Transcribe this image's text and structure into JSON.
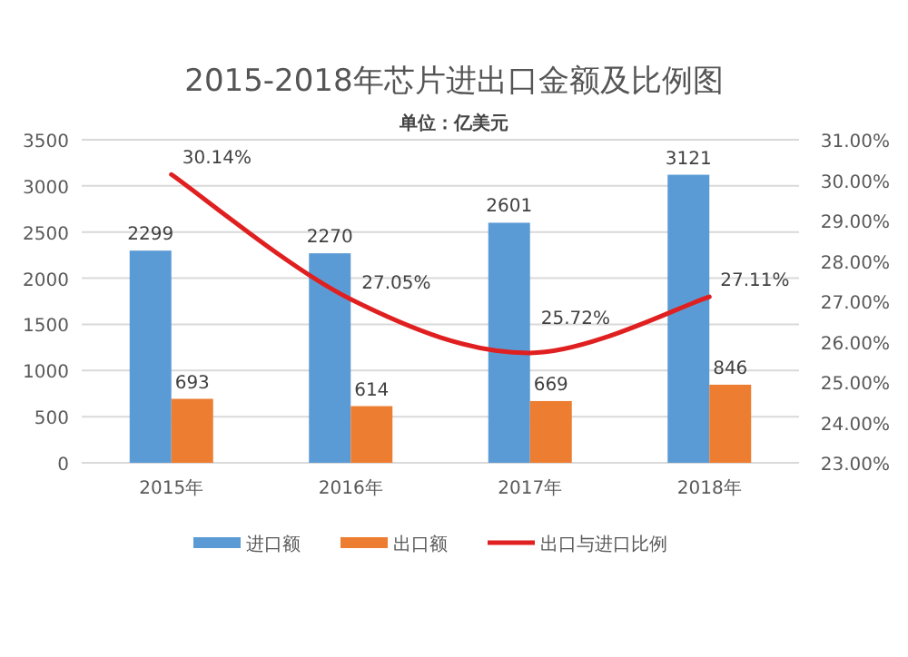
{
  "chart_data": {
    "type": "bar",
    "title": "2015-2018年芯片进出口金额及比例图",
    "subtitle": "单位：亿美元",
    "categories": [
      "2015年",
      "2016年",
      "2017年",
      "2018年"
    ],
    "series": [
      {
        "name": "进口额",
        "color": "#5b9bd5",
        "values": [
          2299,
          2270,
          2601,
          3121
        ],
        "value_labels": [
          "2299",
          "2270",
          "2601",
          "3121"
        ]
      },
      {
        "name": "出口额",
        "color": "#ed7d31",
        "values": [
          693,
          614,
          669,
          846
        ],
        "value_labels": [
          "693",
          "614",
          "669",
          "846"
        ]
      },
      {
        "name": "出口与进口比例",
        "type": "line",
        "axis": "y2",
        "color": "#e02020",
        "marker": "none",
        "line_style": "solid",
        "values": [
          30.14,
          27.05,
          25.72,
          27.11
        ],
        "value_labels": [
          "30.14%",
          "27.05%",
          "25.72%",
          "27.11%"
        ]
      }
    ],
    "ylim": [
      0,
      3500
    ],
    "yticks": [
      0,
      500,
      1000,
      1500,
      2000,
      2500,
      3000,
      3500
    ],
    "y2lim": [
      23,
      31
    ],
    "y2ticks": [
      {
        "value": 23,
        "label": "23.00%"
      },
      {
        "value": 24,
        "label": "24.00%"
      },
      {
        "value": 25,
        "label": "25.00%"
      },
      {
        "value": 26,
        "label": "26.00%"
      },
      {
        "value": 27,
        "label": "27.00%"
      },
      {
        "value": 28,
        "label": "28.00%"
      },
      {
        "value": 29,
        "label": "29.00%"
      },
      {
        "value": 30,
        "label": "30.00%"
      },
      {
        "value": 31,
        "label": "31.00%"
      }
    ],
    "grid": "y",
    "legend": "bottom"
  }
}
